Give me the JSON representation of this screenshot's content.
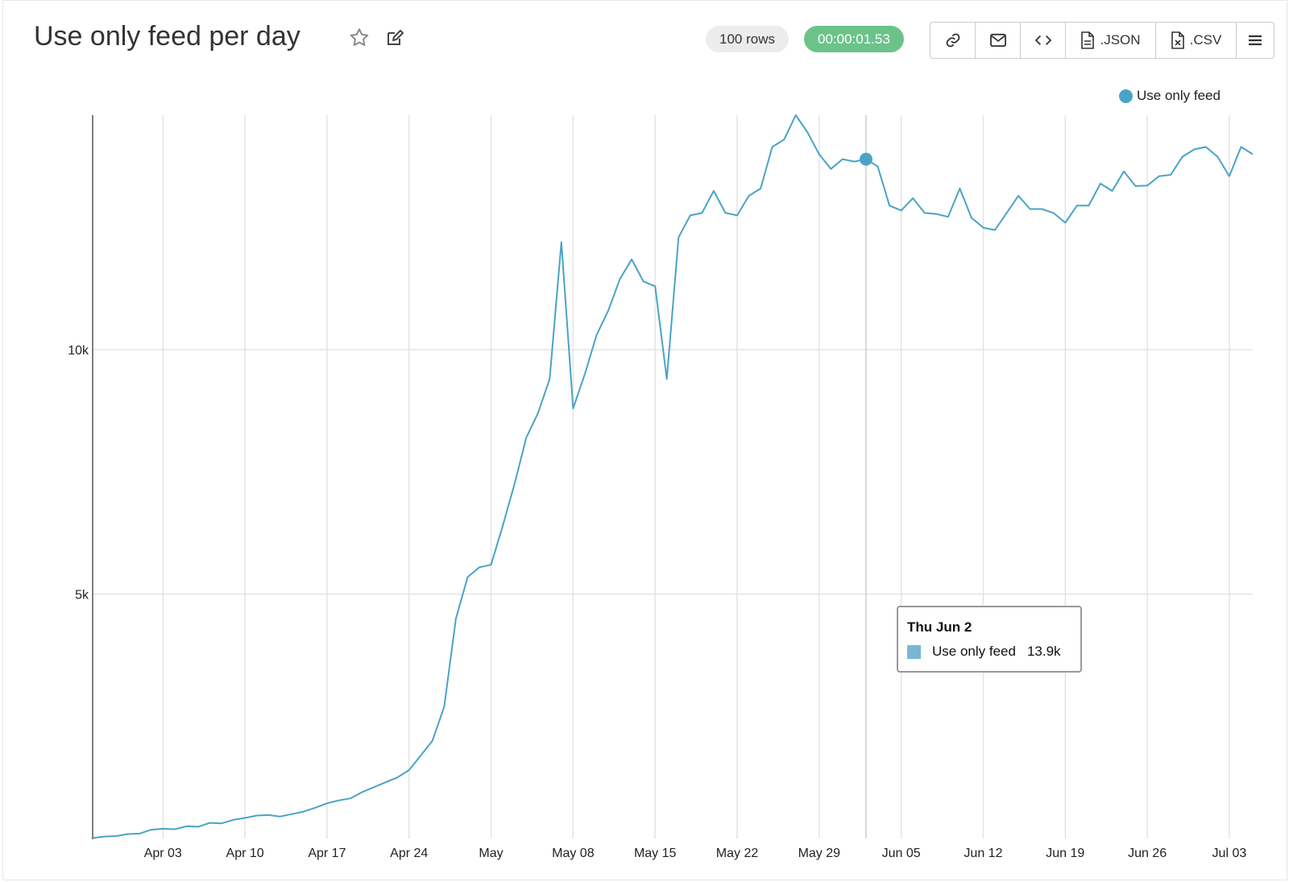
{
  "header": {
    "title": "Use only feed per day",
    "rows_badge": "100 rows",
    "time_badge": "00:00:01.53",
    "toolbar": {
      "link_icon": "link-icon",
      "email_icon": "mail-icon",
      "embed_icon": "code-icon",
      "json_label": ".JSON",
      "csv_label": ".CSV",
      "menu_icon": "hamburger-icon"
    }
  },
  "colors": {
    "line": "#4aa3c6",
    "accent_time": "#6cc38a"
  },
  "tooltip": {
    "date": "Thu Jun 2",
    "series": "Use only feed",
    "value": "13.9k"
  },
  "chart_data": {
    "type": "line",
    "title": "",
    "xlabel": "",
    "ylabel": "",
    "ylim": [
      0,
      14800
    ],
    "grid": true,
    "legend_position": "top-right",
    "x_start": "2022-03-28",
    "x_end": "2022-07-05",
    "x_ticks": [
      {
        "date": "2022-04-03",
        "label": "Apr 03"
      },
      {
        "date": "2022-04-10",
        "label": "Apr 10"
      },
      {
        "date": "2022-04-17",
        "label": "Apr 17"
      },
      {
        "date": "2022-04-24",
        "label": "Apr 24"
      },
      {
        "date": "2022-05-01",
        "label": "May"
      },
      {
        "date": "2022-05-08",
        "label": "May 08"
      },
      {
        "date": "2022-05-15",
        "label": "May 15"
      },
      {
        "date": "2022-05-22",
        "label": "May 22"
      },
      {
        "date": "2022-05-29",
        "label": "May 29"
      },
      {
        "date": "2022-06-05",
        "label": "Jun 05"
      },
      {
        "date": "2022-06-12",
        "label": "Jun 12"
      },
      {
        "date": "2022-06-19",
        "label": "Jun 19"
      },
      {
        "date": "2022-06-26",
        "label": "Jun 26"
      },
      {
        "date": "2022-07-03",
        "label": "Jul 03"
      }
    ],
    "y_ticks": [
      {
        "value": 5000,
        "label": "5k"
      },
      {
        "value": 10000,
        "label": "10k"
      }
    ],
    "highlight": {
      "date": "2022-06-02",
      "value": 13900
    },
    "series": [
      {
        "name": "Use only feed",
        "color": "#4aa3c6",
        "points": [
          [
            "2022-03-28",
            10
          ],
          [
            "2022-03-29",
            40
          ],
          [
            "2022-03-30",
            50
          ],
          [
            "2022-03-31",
            90
          ],
          [
            "2022-04-01",
            100
          ],
          [
            "2022-04-02",
            180
          ],
          [
            "2022-04-03",
            200
          ],
          [
            "2022-04-04",
            190
          ],
          [
            "2022-04-05",
            250
          ],
          [
            "2022-04-06",
            240
          ],
          [
            "2022-04-07",
            320
          ],
          [
            "2022-04-08",
            310
          ],
          [
            "2022-04-09",
            380
          ],
          [
            "2022-04-10",
            420
          ],
          [
            "2022-04-11",
            470
          ],
          [
            "2022-04-12",
            480
          ],
          [
            "2022-04-13",
            450
          ],
          [
            "2022-04-14",
            500
          ],
          [
            "2022-04-15",
            550
          ],
          [
            "2022-04-16",
            630
          ],
          [
            "2022-04-17",
            720
          ],
          [
            "2022-04-18",
            780
          ],
          [
            "2022-04-19",
            820
          ],
          [
            "2022-04-20",
            950
          ],
          [
            "2022-04-21",
            1050
          ],
          [
            "2022-04-22",
            1150
          ],
          [
            "2022-04-23",
            1250
          ],
          [
            "2022-04-24",
            1400
          ],
          [
            "2022-04-25",
            1700
          ],
          [
            "2022-04-26",
            2000
          ],
          [
            "2022-04-27",
            2700
          ],
          [
            "2022-04-28",
            4500
          ],
          [
            "2022-04-29",
            5350
          ],
          [
            "2022-04-30",
            5550
          ],
          [
            "2022-05-01",
            5600
          ],
          [
            "2022-05-02",
            6400
          ],
          [
            "2022-05-03",
            7250
          ],
          [
            "2022-05-04",
            8200
          ],
          [
            "2022-05-05",
            8700
          ],
          [
            "2022-05-06",
            9400
          ],
          [
            "2022-05-07",
            12200
          ],
          [
            "2022-05-08",
            8800
          ],
          [
            "2022-05-09",
            9500
          ],
          [
            "2022-05-10",
            10300
          ],
          [
            "2022-05-11",
            10800
          ],
          [
            "2022-05-12",
            11450
          ],
          [
            "2022-05-13",
            11850
          ],
          [
            "2022-05-14",
            11400
          ],
          [
            "2022-05-15",
            11300
          ],
          [
            "2022-05-16",
            9400
          ],
          [
            "2022-05-17",
            12300
          ],
          [
            "2022-05-18",
            12750
          ],
          [
            "2022-05-19",
            12800
          ],
          [
            "2022-05-20",
            13250
          ],
          [
            "2022-05-21",
            12800
          ],
          [
            "2022-05-22",
            12750
          ],
          [
            "2022-05-23",
            13150
          ],
          [
            "2022-05-24",
            13300
          ],
          [
            "2022-05-25",
            14150
          ],
          [
            "2022-05-26",
            14300
          ],
          [
            "2022-05-27",
            14800
          ],
          [
            "2022-05-28",
            14450
          ],
          [
            "2022-05-29",
            14000
          ],
          [
            "2022-05-30",
            13700
          ],
          [
            "2022-05-31",
            13900
          ],
          [
            "2022-06-01",
            13850
          ],
          [
            "2022-06-02",
            13900
          ],
          [
            "2022-06-03",
            13750
          ],
          [
            "2022-06-04",
            12950
          ],
          [
            "2022-06-05",
            12850
          ],
          [
            "2022-06-06",
            13100
          ],
          [
            "2022-06-07",
            12800
          ],
          [
            "2022-06-08",
            12780
          ],
          [
            "2022-06-09",
            12720
          ],
          [
            "2022-06-10",
            13300
          ],
          [
            "2022-06-11",
            12700
          ],
          [
            "2022-06-12",
            12500
          ],
          [
            "2022-06-13",
            12450
          ],
          [
            "2022-06-14",
            12800
          ],
          [
            "2022-06-15",
            13150
          ],
          [
            "2022-06-16",
            12880
          ],
          [
            "2022-06-17",
            12880
          ],
          [
            "2022-06-18",
            12800
          ],
          [
            "2022-06-19",
            12600
          ],
          [
            "2022-06-20",
            12950
          ],
          [
            "2022-06-21",
            12950
          ],
          [
            "2022-06-22",
            13400
          ],
          [
            "2022-06-23",
            13250
          ],
          [
            "2022-06-24",
            13650
          ],
          [
            "2022-06-25",
            13350
          ],
          [
            "2022-06-26",
            13360
          ],
          [
            "2022-06-27",
            13550
          ],
          [
            "2022-06-28",
            13580
          ],
          [
            "2022-06-29",
            13950
          ],
          [
            "2022-06-30",
            14100
          ],
          [
            "2022-07-01",
            14150
          ],
          [
            "2022-07-02",
            13950
          ],
          [
            "2022-07-03",
            13550
          ],
          [
            "2022-07-04",
            14150
          ],
          [
            "2022-07-05",
            14000
          ]
        ]
      }
    ]
  }
}
